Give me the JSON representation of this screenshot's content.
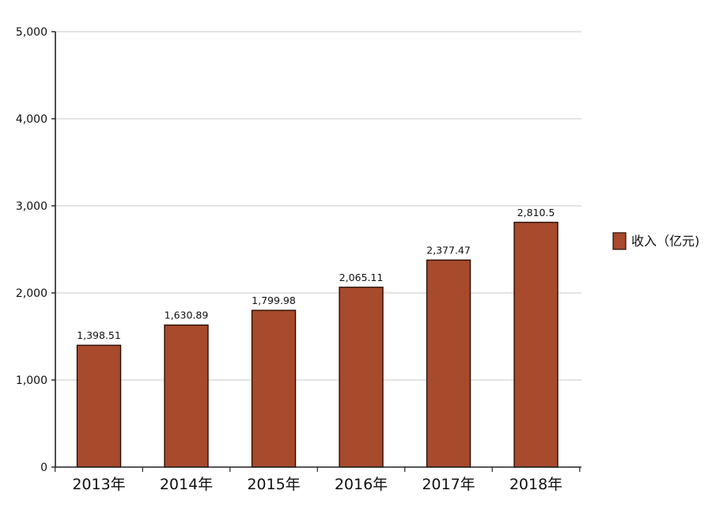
{
  "chart_data": {
    "type": "bar",
    "title": "",
    "xlabel": "",
    "ylabel": "",
    "categories": [
      "2013年",
      "2014年",
      "2015年",
      "2016年",
      "2017年",
      "2018年"
    ],
    "series": [
      {
        "name": "收入（亿元)",
        "values": [
          1398.51,
          1630.89,
          1799.98,
          2065.11,
          2377.47,
          2810.5
        ],
        "labels": [
          "1,398.51",
          "1,630.89",
          "1,799.98",
          "2,065.11",
          "2,377.47",
          "2,810.5"
        ],
        "color": "#a84a2c"
      }
    ],
    "ylim": [
      0,
      5000
    ],
    "yticks": [
      0,
      1000,
      2000,
      3000,
      4000,
      5000
    ],
    "ytick_labels": [
      "0",
      "1,000",
      "2,000",
      "3,000",
      "4,000",
      "5,000"
    ],
    "grid": true,
    "legend_position": "right"
  }
}
